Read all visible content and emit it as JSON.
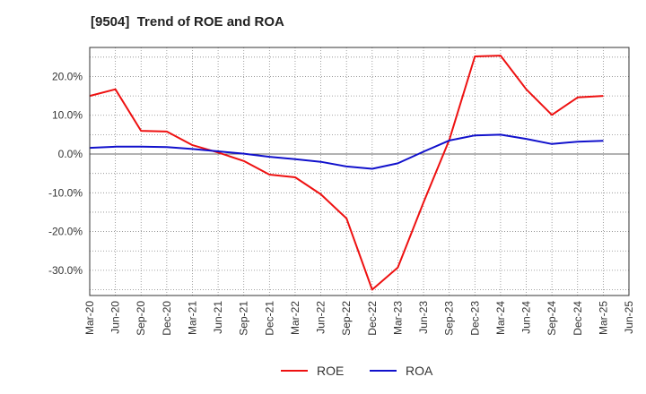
{
  "chart_data": {
    "type": "line",
    "title": "[9504]  Trend of ROE and ROA",
    "xlabel": "",
    "ylabel": "",
    "x": [
      "Mar-20",
      "Jun-20",
      "Sep-20",
      "Dec-20",
      "Mar-21",
      "Jun-21",
      "Sep-21",
      "Dec-21",
      "Mar-22",
      "Jun-22",
      "Sep-22",
      "Dec-22",
      "Mar-23",
      "Jun-23",
      "Sep-23",
      "Dec-23",
      "Mar-24",
      "Jun-24",
      "Sep-24",
      "Dec-24",
      "Mar-25",
      "Jun-25"
    ],
    "y_ticks": [
      20,
      10,
      0,
      -10,
      -20,
      -30
    ],
    "y_tick_labels": [
      "20.0%",
      "10.0%",
      "0.0%",
      "-10.0%",
      "-20.0%",
      "-30.0%"
    ],
    "ylim": [
      -36.5,
      27.5
    ],
    "grid": true,
    "legend_position": "bottom-center",
    "series": [
      {
        "name": "ROE",
        "color": "#ee1111",
        "values": [
          15.0,
          16.7,
          6.0,
          5.8,
          2.3,
          0.4,
          -1.8,
          -5.3,
          -6.0,
          -10.4,
          -16.6,
          -35.0,
          -29.3,
          -12.5,
          3.6,
          25.2,
          25.4,
          16.7,
          10.1,
          14.6,
          15.0,
          null
        ]
      },
      {
        "name": "ROA",
        "color": "#1111cc",
        "values": [
          1.6,
          1.9,
          1.9,
          1.8,
          1.3,
          0.7,
          0.1,
          -0.7,
          -1.3,
          -2.0,
          -3.2,
          -3.8,
          -2.4,
          0.6,
          3.5,
          4.8,
          5.0,
          3.9,
          2.6,
          3.2,
          3.4,
          null
        ]
      }
    ]
  }
}
